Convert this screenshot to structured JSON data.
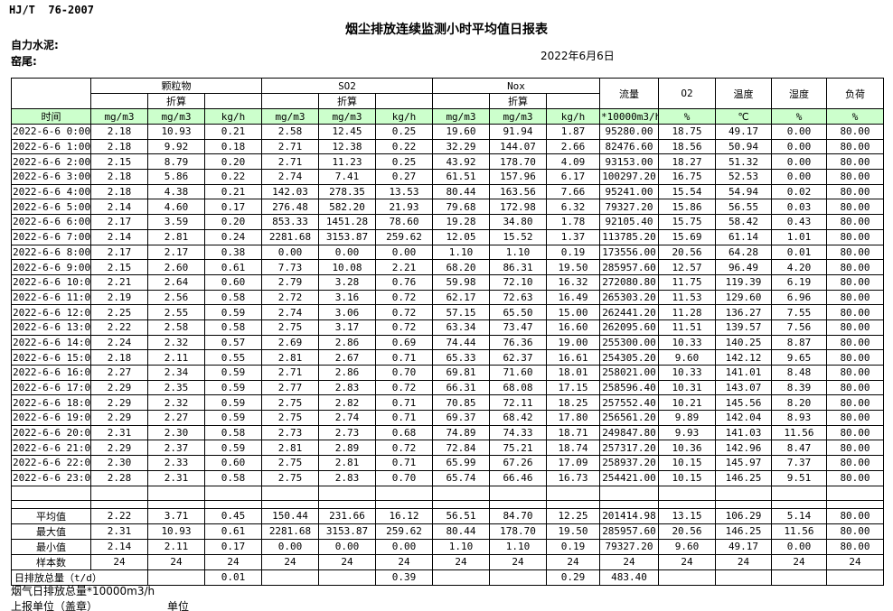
{
  "page": {
    "standard_code": "HJ/T  76-2007",
    "title": "烟尘排放连续监测小时平均值日报表",
    "company": "自力水泥:",
    "kiln": "窑尾:",
    "date": "2022年6月6日"
  },
  "colors": {
    "header_green": "#ccffcc"
  },
  "table": {
    "groups": {
      "pm": "颗粒物",
      "so2": "SO2",
      "nox": "Nox",
      "converted": "折算",
      "flow": "流量",
      "o2": "O2",
      "temp": "温度",
      "humidity": "湿度",
      "load": "负荷"
    },
    "units": [
      "时间",
      "mg/m3",
      "mg/m3",
      "kg/h",
      "mg/m3",
      "mg/m3",
      "kg/h",
      "mg/m3",
      "mg/m3",
      "kg/h",
      "*10000m3/h",
      "%",
      "℃",
      "%",
      "%"
    ],
    "rows": [
      [
        "2022-6-6 0:00",
        "2.18",
        "10.93",
        "0.21",
        "2.58",
        "12.45",
        "0.25",
        "19.60",
        "91.94",
        "1.87",
        "95280.00",
        "18.75",
        "49.17",
        "0.00",
        "80.00"
      ],
      [
        "2022-6-6 1:00",
        "2.18",
        "9.92",
        "0.18",
        "2.71",
        "12.38",
        "0.22",
        "32.29",
        "144.07",
        "2.66",
        "82476.60",
        "18.56",
        "50.94",
        "0.00",
        "80.00"
      ],
      [
        "2022-6-6 2:00",
        "2.15",
        "8.79",
        "0.20",
        "2.71",
        "11.23",
        "0.25",
        "43.92",
        "178.70",
        "4.09",
        "93153.00",
        "18.27",
        "51.32",
        "0.00",
        "80.00"
      ],
      [
        "2022-6-6 3:00",
        "2.18",
        "5.86",
        "0.22",
        "2.74",
        "7.41",
        "0.27",
        "61.51",
        "157.96",
        "6.17",
        "100297.20",
        "16.75",
        "52.53",
        "0.00",
        "80.00"
      ],
      [
        "2022-6-6 4:00",
        "2.18",
        "4.38",
        "0.21",
        "142.03",
        "278.35",
        "13.53",
        "80.44",
        "163.56",
        "7.66",
        "95241.00",
        "15.54",
        "54.94",
        "0.02",
        "80.00"
      ],
      [
        "2022-6-6 5:00",
        "2.14",
        "4.60",
        "0.17",
        "276.48",
        "582.20",
        "21.93",
        "79.68",
        "172.98",
        "6.32",
        "79327.20",
        "15.86",
        "56.55",
        "0.03",
        "80.00"
      ],
      [
        "2022-6-6 6:00",
        "2.17",
        "3.59",
        "0.20",
        "853.33",
        "1451.28",
        "78.60",
        "19.28",
        "34.80",
        "1.78",
        "92105.40",
        "15.75",
        "58.42",
        "0.43",
        "80.00"
      ],
      [
        "2022-6-6 7:00",
        "2.14",
        "2.81",
        "0.24",
        "2281.68",
        "3153.87",
        "259.62",
        "12.05",
        "15.52",
        "1.37",
        "113785.20",
        "15.69",
        "61.14",
        "1.01",
        "80.00"
      ],
      [
        "2022-6-6 8:00",
        "2.17",
        "2.17",
        "0.38",
        "0.00",
        "0.00",
        "0.00",
        "1.10",
        "1.10",
        "0.19",
        "173556.00",
        "20.56",
        "64.28",
        "0.01",
        "80.00"
      ],
      [
        "2022-6-6 9:00",
        "2.15",
        "2.60",
        "0.61",
        "7.73",
        "10.08",
        "2.21",
        "68.20",
        "86.31",
        "19.50",
        "285957.60",
        "12.57",
        "96.49",
        "4.20",
        "80.00"
      ],
      [
        "2022-6-6 10:00",
        "2.21",
        "2.64",
        "0.60",
        "2.79",
        "3.28",
        "0.76",
        "59.98",
        "72.10",
        "16.32",
        "272080.80",
        "11.75",
        "119.39",
        "6.19",
        "80.00"
      ],
      [
        "2022-6-6 11:00",
        "2.19",
        "2.56",
        "0.58",
        "2.72",
        "3.16",
        "0.72",
        "62.17",
        "72.63",
        "16.49",
        "265303.20",
        "11.53",
        "129.60",
        "6.96",
        "80.00"
      ],
      [
        "2022-6-6 12:00",
        "2.25",
        "2.55",
        "0.59",
        "2.74",
        "3.06",
        "0.72",
        "57.15",
        "65.50",
        "15.00",
        "262441.20",
        "11.28",
        "136.27",
        "7.55",
        "80.00"
      ],
      [
        "2022-6-6 13:00",
        "2.22",
        "2.58",
        "0.58",
        "2.75",
        "3.17",
        "0.72",
        "63.34",
        "73.47",
        "16.60",
        "262095.60",
        "11.51",
        "139.57",
        "7.56",
        "80.00"
      ],
      [
        "2022-6-6 14:00",
        "2.24",
        "2.32",
        "0.57",
        "2.69",
        "2.86",
        "0.69",
        "74.44",
        "76.36",
        "19.00",
        "255300.00",
        "10.33",
        "140.25",
        "8.87",
        "80.00"
      ],
      [
        "2022-6-6 15:00",
        "2.18",
        "2.11",
        "0.55",
        "2.81",
        "2.67",
        "0.71",
        "65.33",
        "62.37",
        "16.61",
        "254305.20",
        "9.60",
        "142.12",
        "9.65",
        "80.00"
      ],
      [
        "2022-6-6 16:00",
        "2.27",
        "2.34",
        "0.59",
        "2.71",
        "2.86",
        "0.70",
        "69.81",
        "71.60",
        "18.01",
        "258021.00",
        "10.33",
        "141.01",
        "8.48",
        "80.00"
      ],
      [
        "2022-6-6 17:00",
        "2.29",
        "2.35",
        "0.59",
        "2.77",
        "2.83",
        "0.72",
        "66.31",
        "68.08",
        "17.15",
        "258596.40",
        "10.31",
        "143.07",
        "8.39",
        "80.00"
      ],
      [
        "2022-6-6 18:00",
        "2.29",
        "2.32",
        "0.59",
        "2.75",
        "2.82",
        "0.71",
        "70.85",
        "72.11",
        "18.25",
        "257552.40",
        "10.21",
        "145.56",
        "8.20",
        "80.00"
      ],
      [
        "2022-6-6 19:00",
        "2.29",
        "2.27",
        "0.59",
        "2.75",
        "2.74",
        "0.71",
        "69.37",
        "68.42",
        "17.80",
        "256561.20",
        "9.89",
        "142.04",
        "8.93",
        "80.00"
      ],
      [
        "2022-6-6 20:00",
        "2.31",
        "2.30",
        "0.58",
        "2.73",
        "2.73",
        "0.68",
        "74.89",
        "74.33",
        "18.71",
        "249847.80",
        "9.93",
        "141.03",
        "11.56",
        "80.00"
      ],
      [
        "2022-6-6 21:00",
        "2.29",
        "2.37",
        "0.59",
        "2.81",
        "2.89",
        "0.72",
        "72.84",
        "75.21",
        "18.74",
        "257317.20",
        "10.36",
        "142.96",
        "8.47",
        "80.00"
      ],
      [
        "2022-6-6 22:00",
        "2.30",
        "2.33",
        "0.60",
        "2.75",
        "2.81",
        "0.71",
        "65.99",
        "67.26",
        "17.09",
        "258937.20",
        "10.15",
        "145.97",
        "7.37",
        "80.00"
      ],
      [
        "2022-6-6 23:00",
        "2.28",
        "2.31",
        "0.58",
        "2.75",
        "2.83",
        "0.70",
        "65.74",
        "66.46",
        "16.73",
        "254421.00",
        "10.15",
        "146.25",
        "9.51",
        "80.00"
      ]
    ],
    "summary": [
      {
        "label": "平均值",
        "values": [
          "2.22",
          "3.71",
          "0.45",
          "150.44",
          "231.66",
          "16.12",
          "56.51",
          "84.70",
          "12.25",
          "201414.98",
          "13.15",
          "106.29",
          "5.14",
          "80.00"
        ]
      },
      {
        "label": "最大值",
        "values": [
          "2.31",
          "10.93",
          "0.61",
          "2281.68",
          "3153.87",
          "259.62",
          "80.44",
          "178.70",
          "19.50",
          "285957.60",
          "20.56",
          "146.25",
          "11.56",
          "80.00"
        ]
      },
      {
        "label": "最小值",
        "values": [
          "2.14",
          "2.11",
          "0.17",
          "0.00",
          "0.00",
          "0.00",
          "1.10",
          "1.10",
          "0.19",
          "79327.20",
          "9.60",
          "49.17",
          "0.00",
          "80.00"
        ]
      },
      {
        "label": "样本数",
        "values": [
          "24",
          "24",
          "24",
          "24",
          "24",
          "24",
          "24",
          "24",
          "24",
          "24",
          "24",
          "24",
          "24",
          "24"
        ]
      }
    ],
    "total_row": {
      "label": "日排放总量（t/d）",
      "values": [
        "",
        "0.01",
        "",
        "",
        "0.39",
        "",
        "",
        "0.29",
        "483.40",
        "",
        "",
        "",
        ""
      ]
    }
  },
  "footer": {
    "line1": "烟气日排放总量*10000m3/h",
    "report_unit_label": "上报单位（盖章）",
    "unit_label": "单位"
  }
}
